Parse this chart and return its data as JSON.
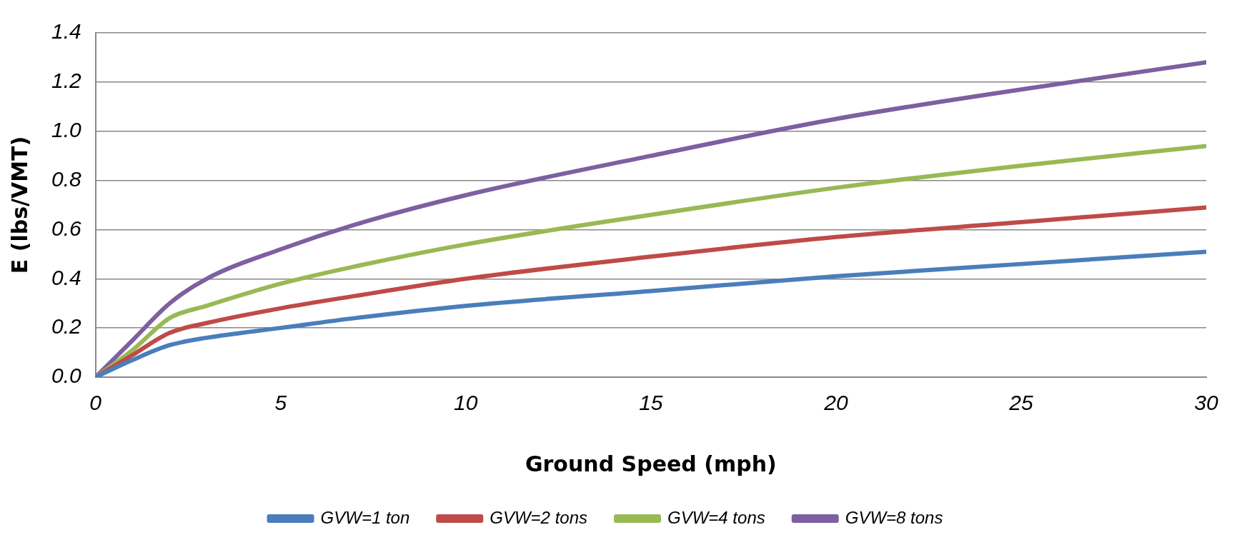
{
  "chart_data": {
    "type": "line",
    "xlabel": "Ground Speed (mph)",
    "ylabel": "E (lbs/VMT)",
    "xlim": [
      0,
      30
    ],
    "xticks": [
      0,
      5,
      10,
      15,
      20,
      25,
      30
    ],
    "ylim": [
      0,
      1.4
    ],
    "yticks": [
      {
        "value": 0,
        "label": "0.0"
      },
      {
        "value": 0.2,
        "label": "0.2"
      },
      {
        "value": 0.4,
        "label": "0.4"
      },
      {
        "value": 0.6,
        "label": "0.6"
      },
      {
        "value": 0.8,
        "label": "0.8"
      },
      {
        "value": 1.0,
        "label": "1.0"
      },
      {
        "value": 1.2,
        "label": "1.2"
      },
      {
        "value": 1.4,
        "label": "1.4"
      }
    ],
    "x": [
      0,
      1,
      2,
      3,
      5,
      7,
      10,
      15,
      20,
      25,
      30
    ],
    "grid": "y",
    "legend": "bottom",
    "marker": "none",
    "line_style": "solid",
    "series": [
      {
        "name": "GVW=1 ton",
        "color": "#4a7ebb",
        "values": [
          0,
          0.07,
          0.13,
          0.16,
          0.2,
          0.24,
          0.29,
          0.35,
          0.41,
          0.46,
          0.51
        ]
      },
      {
        "name": "GVW=2 tons",
        "color": "#be4b48",
        "values": [
          0,
          0.09,
          0.18,
          0.22,
          0.28,
          0.33,
          0.4,
          0.49,
          0.57,
          0.63,
          0.69
        ]
      },
      {
        "name": "GVW=4 tons",
        "color": "#98b954",
        "values": [
          0,
          0.11,
          0.24,
          0.29,
          0.38,
          0.45,
          0.54,
          0.66,
          0.77,
          0.86,
          0.94
        ]
      },
      {
        "name": "GVW=8 tons",
        "color": "#7d60a0",
        "values": [
          0,
          0.15,
          0.3,
          0.4,
          0.52,
          0.62,
          0.74,
          0.9,
          1.05,
          1.17,
          1.28
        ]
      }
    ]
  }
}
